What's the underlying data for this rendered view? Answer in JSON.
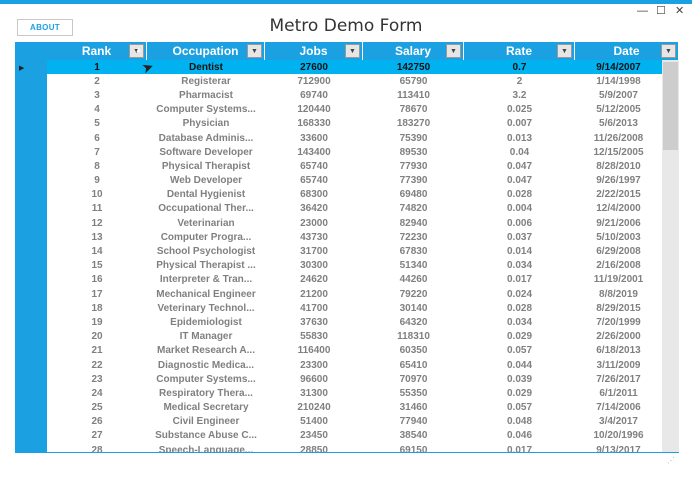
{
  "window": {
    "title": "Metro Demo Form",
    "about_label": "ABOUT",
    "min_glyph": "—",
    "max_glyph": "☐",
    "close_glyph": "✕"
  },
  "colors": {
    "accent": "#1ba1e2",
    "selected_row": "#00b2f0"
  },
  "grid": {
    "columns": [
      "Rank",
      "Occupation",
      "Jobs",
      "Salary",
      "Rate",
      "Date"
    ],
    "filter_icon": "filter-dropdown-icon",
    "rows": [
      [
        "1",
        "Dentist",
        "27600",
        "142750",
        "0.7",
        "9/14/2007"
      ],
      [
        "2",
        "Registerar",
        "712900",
        "65790",
        "2",
        "1/14/1998"
      ],
      [
        "3",
        "Pharmacist",
        "69740",
        "113410",
        "3.2",
        "5/9/2007"
      ],
      [
        "4",
        "Computer Systems...",
        "120440",
        "78670",
        "0.025",
        "5/12/2005"
      ],
      [
        "5",
        "Physician",
        "168330",
        "183270",
        "0.007",
        "5/6/2013"
      ],
      [
        "6",
        "Database Adminis...",
        "33600",
        "75390",
        "0.013",
        "11/26/2008"
      ],
      [
        "7",
        "Software Developer",
        "143400",
        "89530",
        "0.04",
        "12/15/2005"
      ],
      [
        "8",
        "Physical Therapist",
        "65740",
        "77930",
        "0.047",
        "8/28/2010"
      ],
      [
        "9",
        "Web Developer",
        "65740",
        "77390",
        "0.047",
        "9/26/1997"
      ],
      [
        "10",
        "Dental Hygienist",
        "68300",
        "69480",
        "0.028",
        "2/22/2015"
      ],
      [
        "11",
        "Occupational Ther...",
        "36420",
        "74820",
        "0.004",
        "12/4/2000"
      ],
      [
        "12",
        "Veterinarian",
        "23000",
        "82940",
        "0.006",
        "9/21/2006"
      ],
      [
        "13",
        "Computer Progra...",
        "43730",
        "72230",
        "0.037",
        "5/10/2003"
      ],
      [
        "14",
        "School Psychologist",
        "31700",
        "67830",
        "0.014",
        "6/29/2008"
      ],
      [
        "15",
        "Physical Therapist ...",
        "30300",
        "51340",
        "0.034",
        "2/16/2008"
      ],
      [
        "16",
        "Interpreter & Tran...",
        "24620",
        "44260",
        "0.017",
        "11/19/2001"
      ],
      [
        "17",
        "Mechanical Engineer",
        "21200",
        "79220",
        "0.024",
        "8/8/2019"
      ],
      [
        "18",
        "Veterinary Technol...",
        "41700",
        "30140",
        "0.028",
        "8/29/2015"
      ],
      [
        "19",
        "Epidemiologist",
        "37630",
        "64320",
        "0.034",
        "7/20/1999"
      ],
      [
        "20",
        "IT Manager",
        "55830",
        "118310",
        "0.029",
        "2/26/2000"
      ],
      [
        "21",
        "Market Research A...",
        "116400",
        "60350",
        "0.057",
        "6/18/2013"
      ],
      [
        "22",
        "Diagnostic Medica...",
        "23300",
        "65410",
        "0.044",
        "3/11/2009"
      ],
      [
        "23",
        "Computer Systems...",
        "96600",
        "70970",
        "0.039",
        "7/26/2017"
      ],
      [
        "24",
        "Respiratory Thera...",
        "31300",
        "55350",
        "0.029",
        "6/1/2011"
      ],
      [
        "25",
        "Medical Secretary",
        "210240",
        "31460",
        "0.057",
        "7/14/2006"
      ],
      [
        "26",
        "Civil Engineer",
        "51400",
        "77940",
        "0.048",
        "3/4/2017"
      ],
      [
        "27",
        "Substance Abuse C...",
        "23450",
        "38540",
        "0.046",
        "10/20/1996"
      ],
      [
        "28",
        "Speech-Language...",
        "28850",
        "69150",
        "0.017",
        "9/13/2017"
      ]
    ]
  }
}
